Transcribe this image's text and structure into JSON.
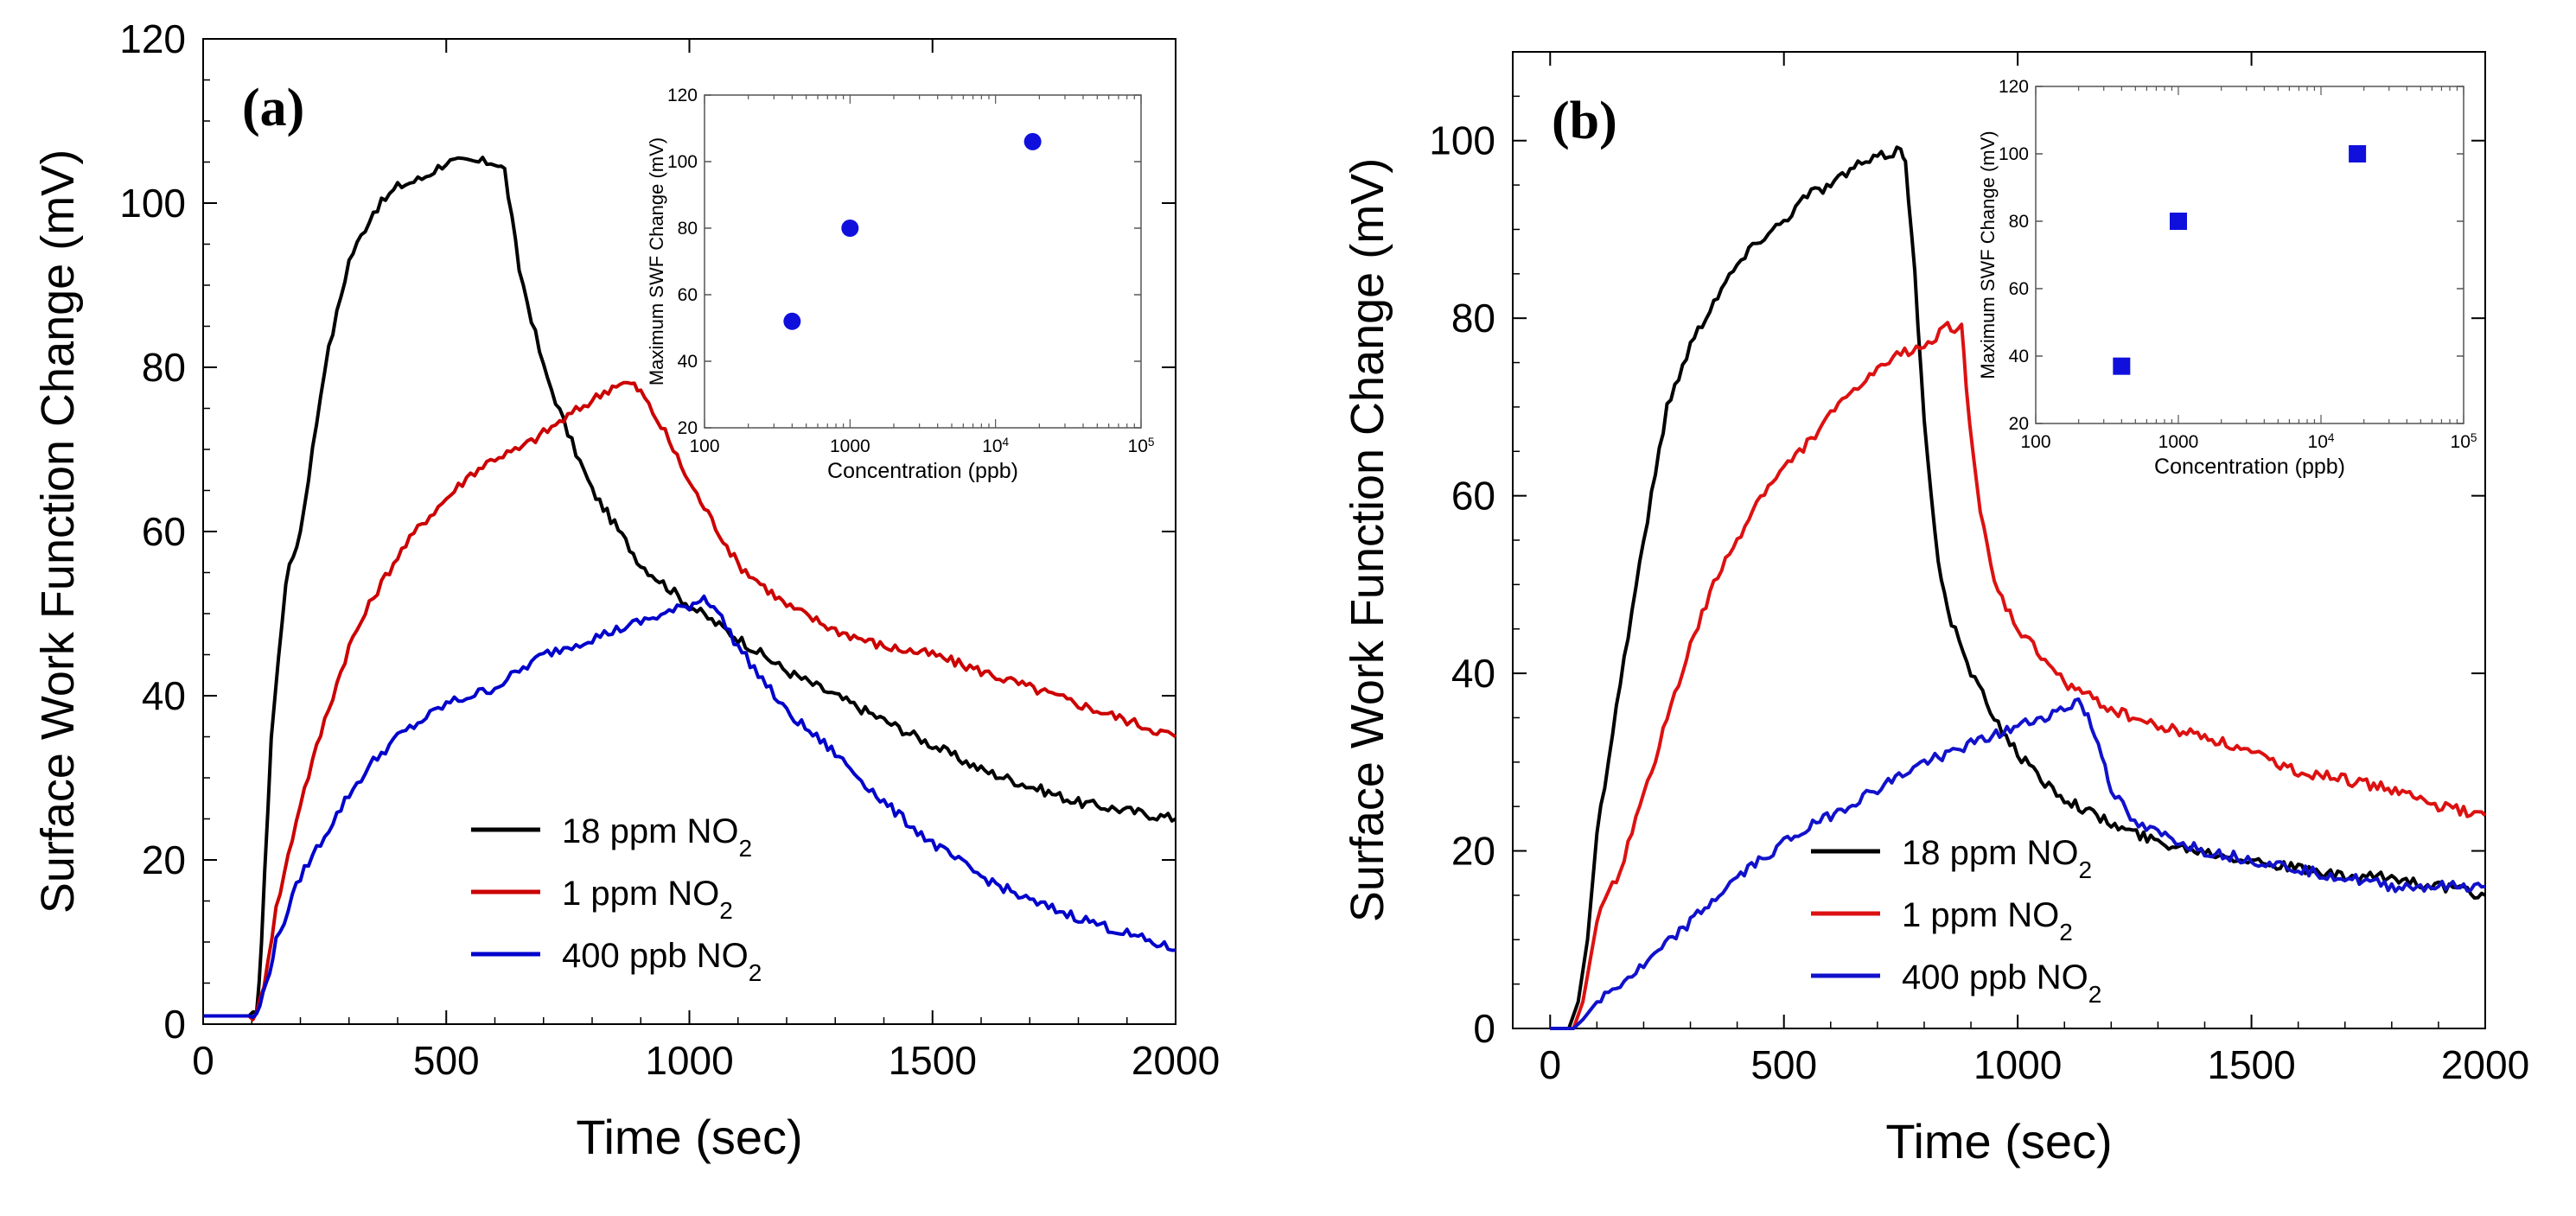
{
  "chart_data": [
    {
      "type": "line",
      "panel_label": "(a)",
      "xlabel": "Time (sec)",
      "ylabel": "Surface Work Function Change (mV)",
      "xlim": [
        0,
        2000
      ],
      "ylim": [
        0,
        120
      ],
      "xticks": [
        0,
        500,
        1000,
        1500,
        2000
      ],
      "yticks": [
        0,
        20,
        40,
        60,
        80,
        100,
        120
      ],
      "legend": {
        "position": "bottom-center",
        "entries": [
          {
            "base": "18 ppm NO",
            "sub": "2",
            "color": "#000000"
          },
          {
            "base": "1 ppm NO",
            "sub": "2",
            "color": "#cc0000"
          },
          {
            "base": "400 ppb NO",
            "sub": "2",
            "color": "#0000cc"
          }
        ]
      },
      "series": [
        {
          "name": "18 ppm NO2",
          "color": "#000000",
          "x": [
            0,
            110,
            120,
            140,
            170,
            200,
            250,
            300,
            350,
            400,
            450,
            500,
            550,
            600,
            620,
            650,
            700,
            750,
            800,
            900,
            1000,
            1100,
            1200,
            1300,
            1400,
            1500,
            1600,
            1700,
            1800,
            1900,
            2000
          ],
          "y": [
            1,
            1,
            10,
            35,
            54,
            60,
            80,
            93,
            99,
            102,
            103,
            105,
            105,
            105,
            104,
            92,
            80,
            72,
            65,
            56,
            51,
            47,
            43,
            40,
            37,
            34,
            31,
            29,
            27,
            26,
            25
          ]
        },
        {
          "name": "1 ppm NO2",
          "color": "#cc0000",
          "x": [
            0,
            110,
            125,
            150,
            200,
            250,
            300,
            350,
            400,
            450,
            500,
            550,
            600,
            650,
            700,
            750,
            800,
            850,
            880,
            900,
            950,
            1000,
            1100,
            1200,
            1300,
            1400,
            1500,
            1600,
            1700,
            1800,
            1900,
            2000
          ],
          "y": [
            1,
            1,
            5,
            14,
            27,
            37,
            46,
            52,
            57,
            61,
            64,
            67,
            69,
            70,
            72,
            74,
            76,
            78,
            78,
            77,
            72,
            66,
            56,
            51,
            48,
            46,
            45,
            43,
            41,
            39,
            37,
            35
          ]
        },
        {
          "name": "400 ppb NO2",
          "color": "#0000cc",
          "x": [
            0,
            110,
            130,
            150,
            200,
            250,
            300,
            350,
            400,
            450,
            500,
            550,
            600,
            650,
            700,
            750,
            800,
            850,
            900,
            950,
            1000,
            1030,
            1050,
            1100,
            1150,
            1200,
            1300,
            1400,
            1500,
            1600,
            1700,
            1800,
            1900,
            2000
          ],
          "y": [
            1,
            1,
            5,
            10,
            18,
            23,
            28,
            32,
            35,
            37,
            39,
            40,
            41,
            43,
            45,
            46,
            47,
            48,
            49,
            50,
            51,
            52,
            51,
            46,
            42,
            38,
            33,
            27,
            22,
            18,
            15,
            13,
            11,
            9
          ]
        }
      ],
      "inset": {
        "type": "scatter",
        "marker": "circle",
        "color": "#1010dd",
        "xlabel": "Concentration (ppb)",
        "ylabel": "Maximum SWF Change (mV)",
        "xscale": "log",
        "xlim": [
          100,
          100000
        ],
        "ylim": [
          20,
          120
        ],
        "xticklabels": [
          {
            "value": 100,
            "base": "100",
            "exp": ""
          },
          {
            "value": 1000,
            "base": "1000",
            "exp": ""
          },
          {
            "value": 10000,
            "base": "10",
            "exp": "4"
          },
          {
            "value": 100000,
            "base": "10",
            "exp": "5"
          }
        ],
        "yticks": [
          20,
          40,
          60,
          80,
          100,
          120
        ],
        "points": [
          {
            "x": 400,
            "y": 52
          },
          {
            "x": 1000,
            "y": 80
          },
          {
            "x": 18000,
            "y": 106
          }
        ]
      }
    },
    {
      "type": "line",
      "panel_label": "(b)",
      "xlabel": "Time (sec)",
      "ylabel": "Surface Work Function Change (mV)",
      "xlim": [
        -80,
        2000
      ],
      "ylim": [
        0,
        110
      ],
      "xticks": [
        0,
        500,
        1000,
        1500,
        2000
      ],
      "yticks": [
        0,
        20,
        40,
        60,
        80,
        100
      ],
      "legend": {
        "position": "bottom-center",
        "entries": [
          {
            "base": "18 ppm NO",
            "sub": "2",
            "color": "#000000"
          },
          {
            "base": "1 ppm NO",
            "sub": "2",
            "color": "#dd1111"
          },
          {
            "base": "400 ppb NO",
            "sub": "2",
            "color": "#1111cc"
          }
        ]
      },
      "series": [
        {
          "name": "18 ppm NO2",
          "color": "#000000",
          "x": [
            0,
            40,
            60,
            80,
            100,
            150,
            200,
            250,
            300,
            350,
            400,
            450,
            500,
            550,
            600,
            650,
            700,
            750,
            760,
            780,
            800,
            830,
            850,
            900,
            950,
            1000,
            1050,
            1100,
            1200,
            1300,
            1400,
            1500,
            1600,
            1700,
            1800,
            1900,
            2000
          ],
          "y": [
            0,
            0,
            3,
            10,
            22,
            39,
            55,
            70,
            77,
            82,
            86,
            89,
            91,
            94,
            95,
            97,
            98,
            99,
            98,
            85,
            68,
            53,
            47,
            40,
            35,
            31,
            28,
            26,
            23,
            21,
            20,
            19,
            18,
            17,
            17,
            16,
            15
          ]
        },
        {
          "name": "1 ppm NO2",
          "color": "#dd1111",
          "x": [
            0,
            50,
            70,
            100,
            150,
            200,
            250,
            300,
            350,
            400,
            450,
            500,
            550,
            600,
            650,
            700,
            750,
            800,
            850,
            880,
            890,
            920,
            950,
            1000,
            1050,
            1100,
            1200,
            1300,
            1400,
            1500,
            1600,
            1700,
            1800,
            1900,
            2000
          ],
          "y": [
            0,
            0,
            3,
            12,
            18,
            26,
            35,
            43,
            50,
            55,
            60,
            63,
            66,
            69,
            72,
            74,
            76,
            77,
            79,
            79,
            72,
            58,
            50,
            45,
            42,
            39,
            36,
            34,
            33,
            31,
            29,
            28,
            27,
            25,
            24
          ]
        },
        {
          "name": "400 ppb NO2",
          "color": "#1111cc",
          "x": [
            0,
            50,
            70,
            100,
            150,
            200,
            300,
            400,
            500,
            600,
            700,
            800,
            900,
            1000,
            1050,
            1100,
            1130,
            1150,
            1180,
            1200,
            1250,
            1300,
            1400,
            1500,
            1600,
            1700,
            1800,
            1900,
            2000
          ],
          "y": [
            0,
            0,
            1,
            3,
            5,
            7,
            12,
            17,
            21,
            24,
            27,
            30,
            32,
            34,
            35,
            36,
            37,
            35,
            31,
            27,
            23,
            22,
            20,
            19,
            18,
            17,
            16,
            16,
            16
          ]
        }
      ],
      "inset": {
        "type": "scatter",
        "marker": "square",
        "color": "#1010dd",
        "xlabel": "Concentration (ppb)",
        "ylabel": "Maximum SWF Change (mV)",
        "xscale": "log",
        "xlim": [
          100,
          100000
        ],
        "ylim": [
          20,
          120
        ],
        "xticklabels": [
          {
            "value": 100,
            "base": "100",
            "exp": ""
          },
          {
            "value": 1000,
            "base": "1000",
            "exp": ""
          },
          {
            "value": 10000,
            "base": "10",
            "exp": "4"
          },
          {
            "value": 100000,
            "base": "10",
            "exp": "5"
          }
        ],
        "yticks": [
          20,
          40,
          60,
          80,
          100,
          120
        ],
        "points": [
          {
            "x": 400,
            "y": 37
          },
          {
            "x": 1000,
            "y": 80
          },
          {
            "x": 18000,
            "y": 100
          }
        ]
      }
    }
  ]
}
